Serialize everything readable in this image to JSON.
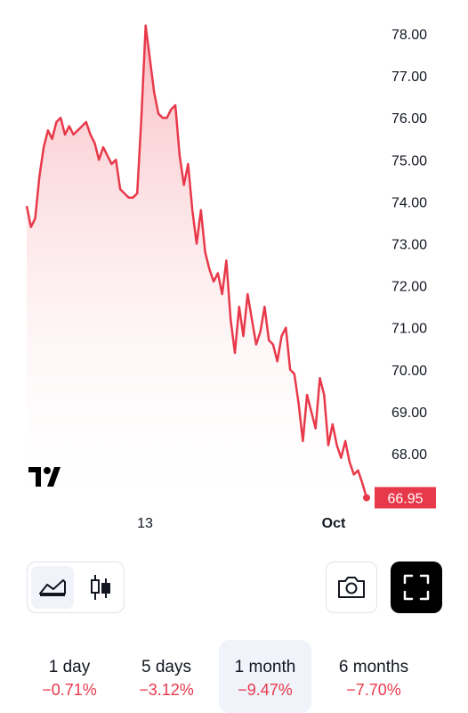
{
  "colors": {
    "line": "#e8394a",
    "fill_top": "#f7a6ae",
    "fill_bottom": "#ffffff",
    "last_price_bg": "#e8394a",
    "text": "#131722",
    "negative": "#e8394a"
  },
  "chart_data": {
    "type": "area",
    "x_axis_labels": [
      "13",
      "Oct"
    ],
    "y_ticks": [
      "78.00",
      "77.00",
      "76.00",
      "75.00",
      "74.00",
      "73.00",
      "72.00",
      "71.00",
      "70.00",
      "69.00",
      "68.00"
    ],
    "ylim": [
      66.4,
      78.3
    ],
    "last_price": "66.95",
    "series": [
      {
        "values": [
          73.9,
          73.4,
          73.6,
          74.6,
          75.3,
          75.7,
          75.5,
          75.9,
          76.0,
          75.6,
          75.8,
          75.6,
          75.7,
          75.8,
          75.9,
          75.6,
          75.4,
          75.0,
          75.3,
          75.1,
          74.9,
          75.0,
          74.3,
          74.2,
          74.1,
          74.1,
          74.2,
          76.0,
          78.2,
          77.4,
          76.6,
          76.1,
          76.0,
          76.0,
          76.2,
          76.3,
          75.1,
          74.4,
          74.9,
          73.8,
          73.0,
          73.8,
          72.8,
          72.4,
          72.1,
          72.3,
          71.8,
          72.6,
          71.2,
          70.4,
          71.5,
          70.8,
          71.8,
          71.2,
          70.6,
          70.9,
          71.5,
          70.7,
          70.6,
          70.2,
          70.8,
          71.0,
          70.0,
          69.9,
          69.2,
          68.3,
          69.4,
          69.0,
          68.6,
          69.8,
          69.4,
          68.2,
          68.7,
          68.2,
          67.9,
          68.3,
          67.8,
          67.5,
          67.6,
          67.3,
          66.95
        ]
      }
    ]
  },
  "controls": {
    "area_icon": "area-chart-icon",
    "candle_icon": "candlestick-icon",
    "camera_icon": "camera-icon",
    "fullscreen_icon": "fullscreen-icon",
    "logo": "tradingview-logo"
  },
  "periods": [
    {
      "label": "1 day",
      "change": "−0.71%",
      "active": false
    },
    {
      "label": "5 days",
      "change": "−3.12%",
      "active": false
    },
    {
      "label": "1 month",
      "change": "−9.47%",
      "active": true
    },
    {
      "label": "6 months",
      "change": "−7.70%",
      "active": false
    }
  ]
}
